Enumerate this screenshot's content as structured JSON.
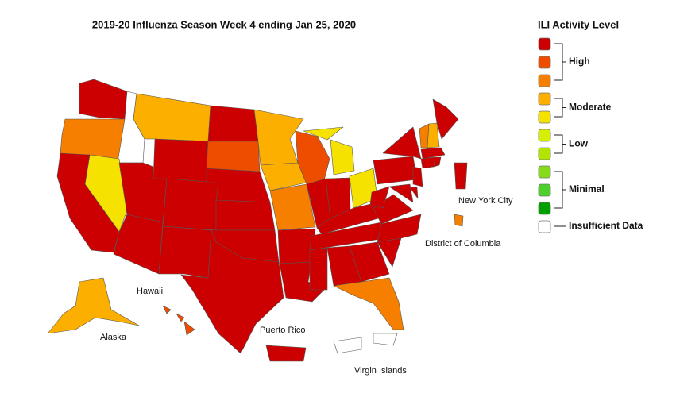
{
  "title": "2019-20 Influenza Season Week 4 ending Jan 25, 2020",
  "labels": [
    "New York City",
    "District of Columbia",
    "Hawaii",
    "Alaska",
    "Puerto Rico",
    "Virgin Islands"
  ],
  "legend": {
    "title": "ILI Activity Level",
    "levels": [
      "#cc0000",
      "#ee4d00",
      "#f67f00",
      "#fdaf00",
      "#f6e200",
      "#d6ee00",
      "#b2e400",
      "#86dc1a",
      "#4dd12a",
      "#00a000",
      "#ffffff"
    ],
    "groups": [
      "High",
      "Moderate",
      "Low",
      "Minimal",
      "Insufficient Data"
    ]
  },
  "areas": [
    0,
    2,
    10,
    3,
    0,
    4,
    0,
    0,
    0,
    0,
    0,
    0,
    1,
    0,
    0,
    0,
    0,
    3,
    3,
    2,
    0,
    0,
    1,
    0,
    4,
    0,
    4,
    0,
    0,
    0,
    0,
    0,
    2,
    0,
    0,
    0,
    0,
    0,
    0,
    2,
    3,
    0,
    0,
    0,
    0,
    0,
    0,
    0,
    3,
    1,
    0,
    0,
    2,
    10
  ]
}
